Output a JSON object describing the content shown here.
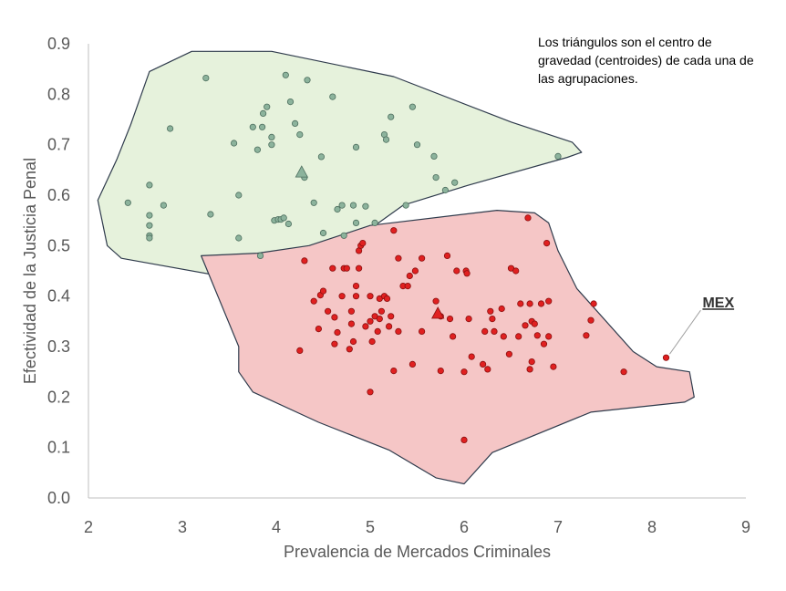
{
  "chart_data": {
    "type": "scatter",
    "title": "",
    "xlabel": "Prevalencia de Mercados Criminales",
    "ylabel": "Efectividad de la Justicia Penal",
    "xlim": [
      2,
      9
    ],
    "ylim": [
      0,
      0.9
    ],
    "xticks": [
      "2",
      "3",
      "4",
      "5",
      "6",
      "7",
      "8",
      "9"
    ],
    "yticks": [
      "0.0",
      "0.1",
      "0.2",
      "0.3",
      "0.4",
      "0.5",
      "0.6",
      "0.7",
      "0.8",
      "0.9"
    ],
    "grid": false,
    "annotation": "Los triángulos son el centro de gravedad (centroides) de cada una de las  agrupaciones.",
    "highlight_label": "MEX",
    "highlight_point": [
      8.15,
      0.278
    ],
    "colors": {
      "green_fill": "#e6f2dc",
      "green_point": "#8cb39c",
      "green_edge": "#4d6e5e",
      "red_fill": "#f5c6c6",
      "red_point": "#e02020",
      "red_edge": "#8a0f0f",
      "hull_stroke": "#2f3b4c"
    },
    "series": [
      {
        "cluster": "green",
        "hull": [
          [
            2.1,
            0.59
          ],
          [
            2.2,
            0.5
          ],
          [
            2.35,
            0.475
          ],
          [
            3.7,
            0.43
          ],
          [
            3.85,
            0.44
          ],
          [
            4.2,
            0.49
          ],
          [
            4.6,
            0.5
          ],
          [
            4.9,
            0.52
          ],
          [
            5.35,
            0.58
          ],
          [
            6.05,
            0.62
          ],
          [
            7.1,
            0.675
          ],
          [
            7.25,
            0.685
          ],
          [
            7.15,
            0.705
          ],
          [
            6.5,
            0.745
          ],
          [
            5.25,
            0.835
          ],
          [
            3.95,
            0.885
          ],
          [
            3.1,
            0.885
          ],
          [
            2.65,
            0.845
          ],
          [
            2.45,
            0.74
          ],
          [
            2.3,
            0.67
          ]
        ],
        "centroid": [
          4.27,
          0.645
        ],
        "points": [
          [
            2.42,
            0.585
          ],
          [
            2.65,
            0.62
          ],
          [
            2.65,
            0.56
          ],
          [
            2.65,
            0.54
          ],
          [
            2.65,
            0.52
          ],
          [
            2.65,
            0.515
          ],
          [
            2.8,
            0.58
          ],
          [
            2.87,
            0.732
          ],
          [
            3.25,
            0.832
          ],
          [
            3.3,
            0.562
          ],
          [
            3.55,
            0.703
          ],
          [
            3.6,
            0.515
          ],
          [
            3.6,
            0.6
          ],
          [
            3.75,
            0.735
          ],
          [
            3.8,
            0.69
          ],
          [
            3.83,
            0.48
          ],
          [
            3.85,
            0.735
          ],
          [
            3.86,
            0.762
          ],
          [
            3.9,
            0.775
          ],
          [
            3.95,
            0.7
          ],
          [
            3.95,
            0.715
          ],
          [
            3.98,
            0.55
          ],
          [
            4.02,
            0.552
          ],
          [
            4.05,
            0.552
          ],
          [
            4.08,
            0.555
          ],
          [
            4.1,
            0.838
          ],
          [
            4.13,
            0.543
          ],
          [
            4.15,
            0.785
          ],
          [
            4.2,
            0.742
          ],
          [
            4.25,
            0.72
          ],
          [
            4.3,
            0.635
          ],
          [
            4.33,
            0.828
          ],
          [
            4.4,
            0.585
          ],
          [
            4.48,
            0.676
          ],
          [
            4.5,
            0.525
          ],
          [
            4.6,
            0.795
          ],
          [
            4.65,
            0.572
          ],
          [
            4.7,
            0.58
          ],
          [
            4.72,
            0.52
          ],
          [
            4.82,
            0.58
          ],
          [
            4.85,
            0.545
          ],
          [
            4.85,
            0.695
          ],
          [
            4.95,
            0.578
          ],
          [
            5.05,
            0.545
          ],
          [
            5.15,
            0.72
          ],
          [
            5.17,
            0.71
          ],
          [
            5.22,
            0.755
          ],
          [
            5.38,
            0.58
          ],
          [
            5.45,
            0.775
          ],
          [
            5.5,
            0.7
          ],
          [
            5.68,
            0.677
          ],
          [
            5.7,
            0.635
          ],
          [
            5.8,
            0.61
          ],
          [
            5.9,
            0.625
          ],
          [
            7.0,
            0.677
          ]
        ]
      },
      {
        "cluster": "red",
        "hull": [
          [
            3.2,
            0.48
          ],
          [
            3.8,
            0.485
          ],
          [
            4.35,
            0.5
          ],
          [
            5.0,
            0.54
          ],
          [
            6.35,
            0.57
          ],
          [
            6.75,
            0.565
          ],
          [
            6.9,
            0.545
          ],
          [
            7.0,
            0.49
          ],
          [
            7.2,
            0.415
          ],
          [
            7.8,
            0.29
          ],
          [
            8.05,
            0.26
          ],
          [
            8.4,
            0.25
          ],
          [
            8.45,
            0.2
          ],
          [
            8.35,
            0.19
          ],
          [
            7.35,
            0.17
          ],
          [
            6.3,
            0.09
          ],
          [
            6.0,
            0.028
          ],
          [
            5.7,
            0.04
          ],
          [
            5.2,
            0.095
          ],
          [
            4.45,
            0.15
          ],
          [
            3.75,
            0.21
          ],
          [
            3.6,
            0.25
          ],
          [
            3.6,
            0.3
          ]
        ],
        "centroid": [
          5.72,
          0.365
        ],
        "points": [
          [
            4.25,
            0.292
          ],
          [
            4.3,
            0.47
          ],
          [
            4.4,
            0.39
          ],
          [
            4.45,
            0.335
          ],
          [
            4.47,
            0.402
          ],
          [
            4.5,
            0.41
          ],
          [
            4.55,
            0.37
          ],
          [
            4.6,
            0.455
          ],
          [
            4.62,
            0.305
          ],
          [
            4.62,
            0.358
          ],
          [
            4.65,
            0.328
          ],
          [
            4.7,
            0.4
          ],
          [
            4.72,
            0.455
          ],
          [
            4.75,
            0.455
          ],
          [
            4.78,
            0.295
          ],
          [
            4.8,
            0.345
          ],
          [
            4.8,
            0.37
          ],
          [
            4.82,
            0.31
          ],
          [
            4.85,
            0.42
          ],
          [
            4.85,
            0.4
          ],
          [
            4.88,
            0.455
          ],
          [
            4.88,
            0.49
          ],
          [
            4.9,
            0.5
          ],
          [
            4.92,
            0.505
          ],
          [
            4.95,
            0.34
          ],
          [
            5.0,
            0.35
          ],
          [
            5.0,
            0.4
          ],
          [
            5.0,
            0.21
          ],
          [
            5.02,
            0.31
          ],
          [
            5.05,
            0.36
          ],
          [
            5.08,
            0.33
          ],
          [
            5.1,
            0.355
          ],
          [
            5.1,
            0.395
          ],
          [
            5.12,
            0.37
          ],
          [
            5.15,
            0.4
          ],
          [
            5.18,
            0.395
          ],
          [
            5.2,
            0.34
          ],
          [
            5.22,
            0.36
          ],
          [
            5.25,
            0.252
          ],
          [
            5.25,
            0.53
          ],
          [
            5.3,
            0.33
          ],
          [
            5.3,
            0.475
          ],
          [
            5.35,
            0.42
          ],
          [
            5.4,
            0.42
          ],
          [
            5.42,
            0.44
          ],
          [
            5.45,
            0.265
          ],
          [
            5.48,
            0.45
          ],
          [
            5.55,
            0.475
          ],
          [
            5.55,
            0.33
          ],
          [
            5.7,
            0.39
          ],
          [
            5.75,
            0.36
          ],
          [
            5.75,
            0.252
          ],
          [
            5.82,
            0.48
          ],
          [
            5.85,
            0.355
          ],
          [
            5.88,
            0.32
          ],
          [
            5.92,
            0.45
          ],
          [
            6.0,
            0.115
          ],
          [
            6.0,
            0.25
          ],
          [
            6.02,
            0.45
          ],
          [
            6.03,
            0.445
          ],
          [
            6.05,
            0.355
          ],
          [
            6.08,
            0.28
          ],
          [
            6.2,
            0.265
          ],
          [
            6.22,
            0.33
          ],
          [
            6.25,
            0.255
          ],
          [
            6.28,
            0.37
          ],
          [
            6.3,
            0.355
          ],
          [
            6.32,
            0.33
          ],
          [
            6.4,
            0.375
          ],
          [
            6.42,
            0.32
          ],
          [
            6.48,
            0.285
          ],
          [
            6.5,
            0.455
          ],
          [
            6.55,
            0.45
          ],
          [
            6.58,
            0.32
          ],
          [
            6.6,
            0.385
          ],
          [
            6.65,
            0.342
          ],
          [
            6.68,
            0.555
          ],
          [
            6.7,
            0.255
          ],
          [
            6.7,
            0.385
          ],
          [
            6.72,
            0.35
          ],
          [
            6.72,
            0.27
          ],
          [
            6.75,
            0.345
          ],
          [
            6.78,
            0.322
          ],
          [
            6.82,
            0.385
          ],
          [
            6.85,
            0.305
          ],
          [
            6.88,
            0.505
          ],
          [
            6.9,
            0.32
          ],
          [
            6.9,
            0.39
          ],
          [
            6.95,
            0.26
          ],
          [
            7.3,
            0.322
          ],
          [
            7.35,
            0.352
          ],
          [
            7.38,
            0.385
          ],
          [
            7.7,
            0.25
          ],
          [
            8.15,
            0.278
          ]
        ]
      }
    ]
  }
}
